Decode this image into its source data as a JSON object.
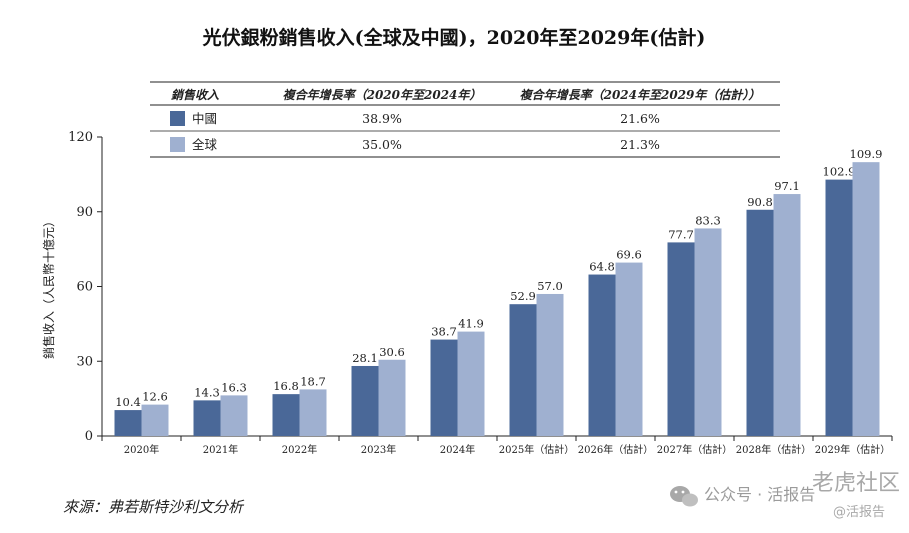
{
  "chart_data": {
    "type": "bar",
    "title": "光伏銀粉銷售收入(全球及中國)，2020年至2029年(估計)",
    "ylabel": "銷售收入（人民幣十億元）",
    "xlabel": "",
    "ylim": [
      0,
      120
    ],
    "yticks": [
      0,
      30,
      60,
      90,
      120
    ],
    "categories": [
      "2020年",
      "2021年",
      "2022年",
      "2023年",
      "2024年",
      "2025年（估計）",
      "2026年（估計）",
      "2027年（估計）",
      "2028年（估計）",
      "2029年（估計）"
    ],
    "series": [
      {
        "name": "中國",
        "color": "#4a6898",
        "values": [
          10.4,
          14.3,
          16.8,
          28.1,
          38.7,
          52.9,
          64.8,
          77.7,
          90.8,
          102.9
        ]
      },
      {
        "name": "全球",
        "color": "#9fb0d0",
        "values": [
          12.6,
          16.3,
          18.7,
          30.6,
          41.9,
          57.0,
          69.6,
          83.3,
          97.1,
          109.9
        ]
      }
    ]
  },
  "legend_table": {
    "headers": [
      "銷售收入",
      "複合年增長率（2020年至2024年）",
      "複合年增長率（2024年至2029年（估計））"
    ],
    "rows": [
      {
        "label": "中國",
        "cagr_2020_2024": "38.9%",
        "cagr_2024_2029": "21.6%"
      },
      {
        "label": "全球",
        "cagr_2020_2024": "35.0%",
        "cagr_2024_2029": "21.3%"
      }
    ]
  },
  "source_note": "來源：弗若斯特沙利文分析",
  "watermark": {
    "line1": "公众号 · 活报告",
    "line2": "老虎社区",
    "line3": "@活报告"
  }
}
